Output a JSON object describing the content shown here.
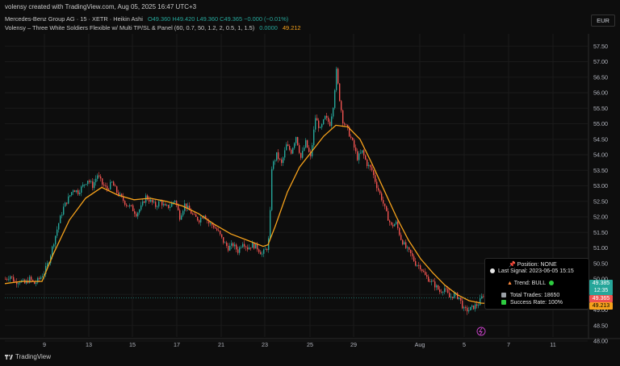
{
  "header": {
    "text": "volensy created with TradingView.com, Aug 05, 2025 16:47 UTC+3"
  },
  "legend": {
    "symbol": "Mercedes-Benz Group AG · 15 · XETR · Heikin Ashi",
    "o_label": "O",
    "o": "49.360",
    "h_label": "H",
    "h": "49.420",
    "l_label": "L",
    "l": "49.360",
    "c_label": "C",
    "c": "49.365",
    "change": "−0.000 (−0.01%)",
    "indicator": "Volensy – Three White Soldiers Flexible w/ Multi TP/SL & Panel (60, 0.7, 50, 1.2, 2, 0.5, 1, 1.5)",
    "ind_v1": "0.0000",
    "ind_v2": "49.212"
  },
  "currency": "EUR",
  "price_badges": {
    "last_price": "49.385",
    "countdown": "12:35",
    "red_price": "49.365",
    "ma_price": "49.213"
  },
  "panel": {
    "position": "📌 Position: NONE",
    "last_signal": "Last Signal: 2023-06-05 15:15",
    "trend": "Trend: BULL",
    "total_trades": "Total Trades: 18650",
    "success_rate": "Success Rate: 100%"
  },
  "footer": {
    "brand": "TradingView"
  },
  "colors": {
    "up": "#26a69a",
    "down": "#ef5350",
    "ma": "#f7a21b",
    "axis_text": "#b2b5be",
    "grid": "#1a1a1a"
  },
  "chart_data": {
    "type": "candlestick",
    "yaxis": {
      "min": 48.0,
      "max": 57.5,
      "ticks": [
        "57.50",
        "57.00",
        "56.50",
        "56.00",
        "55.50",
        "55.00",
        "54.50",
        "54.00",
        "53.50",
        "53.00",
        "52.50",
        "52.00",
        "51.50",
        "51.00",
        "50.50",
        "50.00",
        "49.50",
        "49.00",
        "48.50",
        "48.00"
      ]
    },
    "xaxis": {
      "ticks": [
        "9",
        "13",
        "15",
        "17",
        "21",
        "23",
        "25",
        "29",
        "Aug",
        "5",
        "7",
        "11"
      ]
    },
    "path": [
      [
        0,
        50.0
      ],
      [
        6,
        50.1
      ],
      [
        12,
        49.9
      ],
      [
        18,
        49.95
      ],
      [
        24,
        49.85
      ],
      [
        30,
        50.0
      ],
      [
        36,
        49.85
      ],
      [
        42,
        50.0
      ],
      [
        48,
        50.2
      ],
      [
        54,
        50.6
      ],
      [
        60,
        51.2
      ],
      [
        66,
        51.8
      ],
      [
        72,
        52.3
      ],
      [
        78,
        52.6
      ],
      [
        84,
        52.9
      ],
      [
        90,
        52.8
      ],
      [
        96,
        53.0
      ],
      [
        102,
        53.2
      ],
      [
        108,
        53.0
      ],
      [
        114,
        53.35
      ],
      [
        120,
        53.05
      ],
      [
        126,
        52.9
      ],
      [
        132,
        53.1
      ],
      [
        138,
        52.8
      ],
      [
        144,
        52.6
      ],
      [
        150,
        52.4
      ],
      [
        156,
        52.3
      ],
      [
        162,
        52.1
      ],
      [
        168,
        52.3
      ],
      [
        174,
        52.65
      ],
      [
        180,
        52.5
      ],
      [
        186,
        52.35
      ],
      [
        192,
        52.5
      ],
      [
        198,
        52.3
      ],
      [
        204,
        52.35
      ],
      [
        210,
        52.55
      ],
      [
        216,
        52.0
      ],
      [
        222,
        52.4
      ],
      [
        228,
        52.2
      ],
      [
        234,
        52.0
      ],
      [
        240,
        51.9
      ],
      [
        246,
        52.1
      ],
      [
        252,
        51.8
      ],
      [
        258,
        51.7
      ],
      [
        264,
        51.5
      ],
      [
        270,
        51.2
      ],
      [
        276,
        51.0
      ],
      [
        282,
        51.1
      ],
      [
        288,
        50.9
      ],
      [
        294,
        51.2
      ],
      [
        300,
        51.0
      ],
      [
        306,
        51.1
      ],
      [
        312,
        51.0
      ],
      [
        318,
        50.8
      ],
      [
        324,
        51.0
      ],
      [
        327,
        51.4
      ],
      [
        330,
        53.6
      ],
      [
        336,
        54.0
      ],
      [
        342,
        53.7
      ],
      [
        348,
        54.3
      ],
      [
        354,
        54.1
      ],
      [
        360,
        54.6
      ],
      [
        366,
        53.9
      ],
      [
        372,
        54.4
      ],
      [
        378,
        53.9
      ],
      [
        384,
        55.2
      ],
      [
        390,
        54.8
      ],
      [
        396,
        55.2
      ],
      [
        402,
        55.0
      ],
      [
        406,
        55.6
      ],
      [
        410,
        56.7
      ],
      [
        414,
        55.8
      ],
      [
        418,
        55.1
      ],
      [
        424,
        54.8
      ],
      [
        430,
        54.4
      ],
      [
        436,
        53.9
      ],
      [
        442,
        54.1
      ],
      [
        448,
        53.7
      ],
      [
        454,
        53.5
      ],
      [
        460,
        53.0
      ],
      [
        466,
        52.6
      ],
      [
        472,
        52.1
      ],
      [
        478,
        51.7
      ],
      [
        484,
        51.8
      ],
      [
        490,
        51.3
      ],
      [
        496,
        51.0
      ],
      [
        502,
        50.8
      ],
      [
        508,
        50.5
      ],
      [
        514,
        50.4
      ],
      [
        520,
        50.1
      ],
      [
        526,
        49.95
      ],
      [
        532,
        49.8
      ],
      [
        538,
        49.6
      ],
      [
        544,
        49.7
      ],
      [
        550,
        49.4
      ],
      [
        556,
        49.5
      ],
      [
        562,
        49.4
      ],
      [
        568,
        49.0
      ],
      [
        574,
        49.0
      ],
      [
        580,
        49.1
      ],
      [
        586,
        49.2
      ],
      [
        592,
        49.5
      ],
      [
        596,
        49.385
      ]
    ],
    "ma50": [
      [
        0,
        49.85
      ],
      [
        20,
        49.92
      ],
      [
        46,
        49.92
      ],
      [
        60,
        50.8
      ],
      [
        80,
        51.9
      ],
      [
        100,
        52.6
      ],
      [
        120,
        52.95
      ],
      [
        140,
        52.7
      ],
      [
        160,
        52.55
      ],
      [
        180,
        52.6
      ],
      [
        200,
        52.5
      ],
      [
        220,
        52.35
      ],
      [
        240,
        52.1
      ],
      [
        260,
        51.75
      ],
      [
        280,
        51.45
      ],
      [
        300,
        51.25
      ],
      [
        320,
        51.05
      ],
      [
        326,
        51.1
      ],
      [
        335,
        51.7
      ],
      [
        350,
        52.8
      ],
      [
        365,
        53.6
      ],
      [
        380,
        54.1
      ],
      [
        395,
        54.6
      ],
      [
        410,
        54.95
      ],
      [
        425,
        54.9
      ],
      [
        440,
        54.5
      ],
      [
        455,
        53.7
      ],
      [
        470,
        52.85
      ],
      [
        485,
        52.0
      ],
      [
        500,
        51.25
      ],
      [
        515,
        50.65
      ],
      [
        530,
        50.2
      ],
      [
        545,
        49.8
      ],
      [
        560,
        49.5
      ],
      [
        575,
        49.3
      ],
      [
        590,
        49.22
      ],
      [
        596,
        49.213
      ]
    ]
  }
}
